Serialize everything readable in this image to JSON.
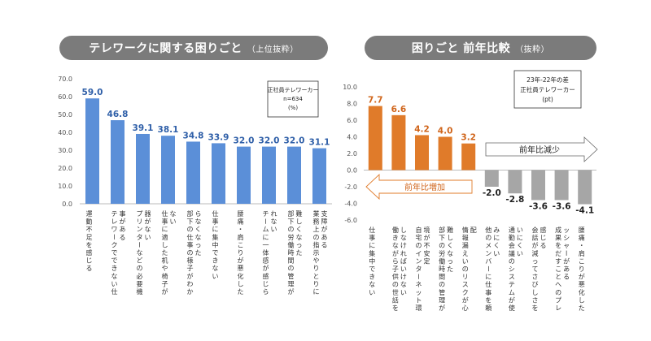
{
  "panels": {
    "left": {
      "title": "テレワークに関する困りごと",
      "subtitle": "（上位抜粋）"
    },
    "right": {
      "title": "困りごと 前年比較",
      "subtitle": "（抜粋）"
    }
  },
  "colors": {
    "blue": "#5b8fd8",
    "orange": "#e07b2a",
    "gray": "#a6a6a6",
    "label_blue": "#2f5fa8",
    "label_orange": "#d0651b",
    "pill": "#7b7b7b"
  },
  "chart_data": [
    {
      "type": "bar",
      "ylim": [
        0,
        70
      ],
      "yticks": [
        "0.0",
        "10.0",
        "20.0",
        "30.0",
        "40.0",
        "50.0",
        "60.0",
        "70.0"
      ],
      "legend_box": [
        "正社員テレワーカー",
        "n=634",
        "(%)"
      ],
      "categories": [
        "運動不足を感じる",
        "テレワークでできない仕事がある",
        "プリンターなどの必要機器がない",
        "仕事に適した机や椅子がない",
        "部下の仕事の様子がわからなくなった",
        "仕事に集中できない",
        "腰痛・肩こりが悪化した",
        "チームに一体感が感じられない",
        "部下の労働時間の管理が難しくなった",
        "業務上の指示やりとりに支障がある"
      ],
      "values": [
        59.0,
        46.8,
        39.1,
        38.1,
        34.8,
        33.9,
        32.0,
        32.0,
        32.0,
        31.1
      ],
      "value_labels": [
        "59.0",
        "46.8",
        "39.1",
        "38.1",
        "34.8",
        "33.9",
        "32.0",
        "32.0",
        "32.0",
        "31.1"
      ]
    },
    {
      "type": "bar",
      "ylim": [
        -6,
        10
      ],
      "yticks": [
        "-6.0",
        "-4.0",
        "-2.0",
        "0.0",
        "2.0",
        "4.0",
        "6.0",
        "8.0",
        "10.0"
      ],
      "legend_box": [
        "23年-22年の差",
        "正社員テレワーカー",
        "(pt)"
      ],
      "arrow_increase": "前年比増加",
      "arrow_decrease": "前年比減少",
      "categories": [
        "仕事に集中できない",
        "働きながら子供の世話をしなければいけない",
        "自宅のインターネット環境が不安定",
        "部下の労働時間の管理が難しくなった",
        "情報漏えいのリスクが心配",
        "他のメンバーに仕事を頼みにくい",
        "通勤会議のシステムが使いにくい",
        "会話が減ってさびしさを感じる",
        "成果をだすことへのプレッシャーがある",
        "腰痛・肩こりが悪化した"
      ],
      "values": [
        7.7,
        6.6,
        4.2,
        4.0,
        3.2,
        -2.0,
        -2.8,
        -3.6,
        -3.6,
        -4.1
      ],
      "value_labels": [
        "7.7",
        "6.6",
        "4.2",
        "4.0",
        "3.2",
        "-2.0",
        "-2.8",
        "-3.6",
        "-3.6",
        "-4.1"
      ]
    }
  ]
}
